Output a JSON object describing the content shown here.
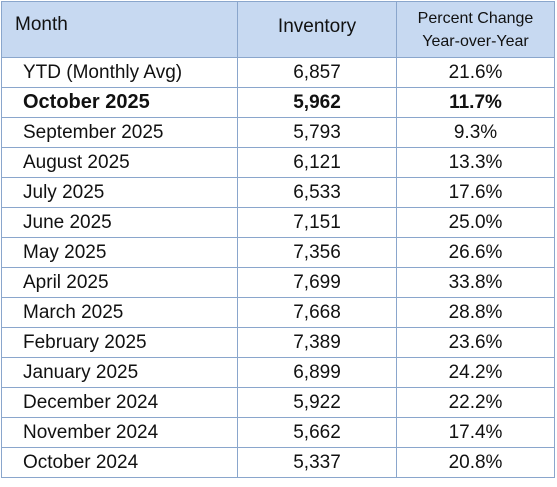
{
  "table": {
    "headers": {
      "month": "Month",
      "inventory": "Inventory",
      "pct_line1": "Percent Change",
      "pct_line2": "Year-over-Year"
    },
    "rows": [
      {
        "month": "YTD (Monthly Avg)",
        "inventory": "6,857",
        "pct": "21.6%"
      },
      {
        "month": "October 2025",
        "inventory": "5,962",
        "pct": "11.7%",
        "bold": true
      },
      {
        "month": "September 2025",
        "inventory": "5,793",
        "pct": "9.3%"
      },
      {
        "month": "August 2025",
        "inventory": "6,121",
        "pct": "13.3%"
      },
      {
        "month": "July 2025",
        "inventory": "6,533",
        "pct": "17.6%"
      },
      {
        "month": "June 2025",
        "inventory": "7,151",
        "pct": "25.0%"
      },
      {
        "month": "May 2025",
        "inventory": "7,356",
        "pct": "26.6%"
      },
      {
        "month": "April 2025",
        "inventory": "7,699",
        "pct": "33.8%"
      },
      {
        "month": "March 2025",
        "inventory": "7,668",
        "pct": "28.8%"
      },
      {
        "month": "February 2025",
        "inventory": "7,389",
        "pct": "23.6%"
      },
      {
        "month": "January 2025",
        "inventory": "6,899",
        "pct": "24.2%"
      },
      {
        "month": "December 2024",
        "inventory": "5,922",
        "pct": "22.2%"
      },
      {
        "month": "November 2024",
        "inventory": "5,662",
        "pct": "17.4%"
      },
      {
        "month": "October 2024",
        "inventory": "5,337",
        "pct": "20.8%"
      }
    ]
  },
  "colors": {
    "header_bg": "#c7d9f1",
    "border": "#8aa6cc"
  }
}
